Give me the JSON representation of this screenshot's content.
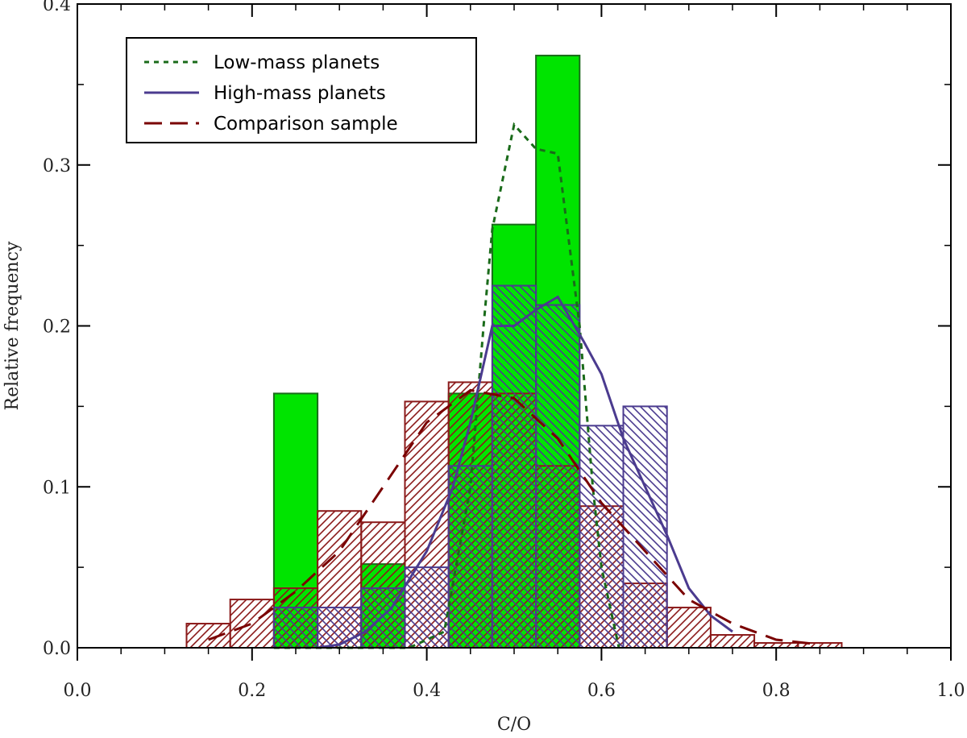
{
  "chart_data": {
    "type": "bar",
    "title": "",
    "xlabel": "C/O",
    "ylabel": "Relative frequency",
    "xlim": [
      0.0,
      1.0
    ],
    "ylim": [
      0.0,
      0.4
    ],
    "x_ticks": [
      "0.0",
      "0.2",
      "0.4",
      "0.6",
      "0.8",
      "1.0"
    ],
    "y_ticks": [
      "0.0",
      "0.1",
      "0.2",
      "0.3",
      "0.4"
    ],
    "bin_width": 0.05,
    "grid": false,
    "legend_position": "top-left",
    "series": [
      {
        "name": "Low-mass planets",
        "style": "solid-fill",
        "fill_color": "#00e400",
        "edge_color": "#1a6b1a",
        "line_color": "#1a6b1a",
        "line_style": "dotted",
        "bins": [
          {
            "start": 0.225,
            "value": 0.158
          },
          {
            "start": 0.325,
            "value": 0.052
          },
          {
            "start": 0.425,
            "value": 0.158
          },
          {
            "start": 0.475,
            "value": 0.263
          },
          {
            "start": 0.525,
            "value": 0.368
          }
        ],
        "curve": [
          [
            0.225,
            0.0
          ],
          [
            0.38,
            0.0
          ],
          [
            0.42,
            0.01
          ],
          [
            0.45,
            0.1
          ],
          [
            0.465,
            0.2
          ],
          [
            0.475,
            0.26
          ],
          [
            0.5,
            0.325
          ],
          [
            0.525,
            0.31
          ],
          [
            0.55,
            0.307
          ],
          [
            0.575,
            0.2
          ],
          [
            0.59,
            0.1
          ],
          [
            0.6,
            0.05
          ],
          [
            0.62,
            0.0
          ]
        ]
      },
      {
        "name": "High-mass planets",
        "style": "hatch-forward",
        "edge_color": "#4b3b8f",
        "line_color": "#4b3b8f",
        "line_style": "solid",
        "bins": [
          {
            "start": 0.225,
            "value": 0.025
          },
          {
            "start": 0.275,
            "value": 0.025
          },
          {
            "start": 0.325,
            "value": 0.037
          },
          {
            "start": 0.375,
            "value": 0.05
          },
          {
            "start": 0.425,
            "value": 0.113
          },
          {
            "start": 0.475,
            "value": 0.225
          },
          {
            "start": 0.525,
            "value": 0.213
          },
          {
            "start": 0.575,
            "value": 0.138
          },
          {
            "start": 0.625,
            "value": 0.15
          }
        ],
        "curve": [
          [
            0.275,
            0.0
          ],
          [
            0.3,
            0.002
          ],
          [
            0.33,
            0.01
          ],
          [
            0.36,
            0.025
          ],
          [
            0.4,
            0.06
          ],
          [
            0.43,
            0.1
          ],
          [
            0.45,
            0.14
          ],
          [
            0.475,
            0.2
          ],
          [
            0.5,
            0.2
          ],
          [
            0.525,
            0.21
          ],
          [
            0.55,
            0.218
          ],
          [
            0.58,
            0.19
          ],
          [
            0.6,
            0.17
          ],
          [
            0.625,
            0.13
          ],
          [
            0.65,
            0.1
          ],
          [
            0.675,
            0.07
          ],
          [
            0.7,
            0.037
          ],
          [
            0.725,
            0.02
          ],
          [
            0.75,
            0.01
          ]
        ]
      },
      {
        "name": "Comparison sample",
        "style": "hatch-back",
        "edge_color": "#8b1a1a",
        "line_color": "#7a0000",
        "line_style": "dashed",
        "bins": [
          {
            "start": 0.125,
            "value": 0.015
          },
          {
            "start": 0.175,
            "value": 0.03
          },
          {
            "start": 0.225,
            "value": 0.037
          },
          {
            "start": 0.275,
            "value": 0.085
          },
          {
            "start": 0.325,
            "value": 0.078
          },
          {
            "start": 0.375,
            "value": 0.153
          },
          {
            "start": 0.425,
            "value": 0.165
          },
          {
            "start": 0.475,
            "value": 0.158
          },
          {
            "start": 0.525,
            "value": 0.113
          },
          {
            "start": 0.575,
            "value": 0.088
          },
          {
            "start": 0.625,
            "value": 0.04
          },
          {
            "start": 0.675,
            "value": 0.025
          },
          {
            "start": 0.725,
            "value": 0.008
          },
          {
            "start": 0.775,
            "value": 0.003
          },
          {
            "start": 0.825,
            "value": 0.003
          }
        ],
        "curve": [
          [
            0.15,
            0.005
          ],
          [
            0.2,
            0.015
          ],
          [
            0.25,
            0.035
          ],
          [
            0.3,
            0.06
          ],
          [
            0.35,
            0.1
          ],
          [
            0.4,
            0.14
          ],
          [
            0.45,
            0.16
          ],
          [
            0.5,
            0.155
          ],
          [
            0.55,
            0.13
          ],
          [
            0.6,
            0.09
          ],
          [
            0.65,
            0.06
          ],
          [
            0.7,
            0.03
          ],
          [
            0.75,
            0.015
          ],
          [
            0.8,
            0.005
          ],
          [
            0.85,
            0.002
          ]
        ]
      }
    ]
  }
}
